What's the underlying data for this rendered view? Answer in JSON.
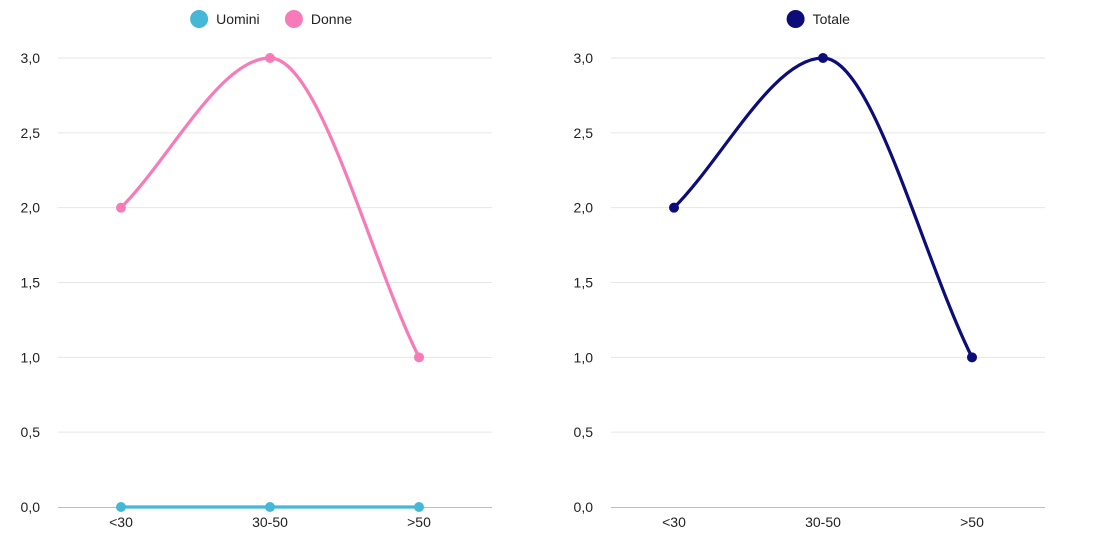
{
  "chart_data": [
    {
      "type": "line",
      "categories": [
        "<30",
        "30-50",
        ">50"
      ],
      "series": [
        {
          "name": "Uomini",
          "color": "#45b8d8",
          "values": [
            0,
            0,
            0
          ]
        },
        {
          "name": "Donne",
          "color": "#f77bb9",
          "values": [
            2,
            3,
            1
          ]
        }
      ],
      "ylim": [
        0,
        3
      ],
      "yticks": [
        "0,0",
        "0,5",
        "1,0",
        "1,5",
        "2,0",
        "2,5",
        "3,0"
      ],
      "legend_position": "top-center",
      "grid": true,
      "smooth": true
    },
    {
      "type": "line",
      "categories": [
        "<30",
        "30-50",
        ">50"
      ],
      "series": [
        {
          "name": "Totale",
          "color": "#0d0d7a",
          "values": [
            2,
            3,
            1
          ]
        }
      ],
      "ylim": [
        0,
        3
      ],
      "yticks": [
        "0,0",
        "0,5",
        "1,0",
        "1,5",
        "2,0",
        "2,5",
        "3,0"
      ],
      "legend_position": "top-center",
      "grid": true,
      "smooth": true
    }
  ]
}
